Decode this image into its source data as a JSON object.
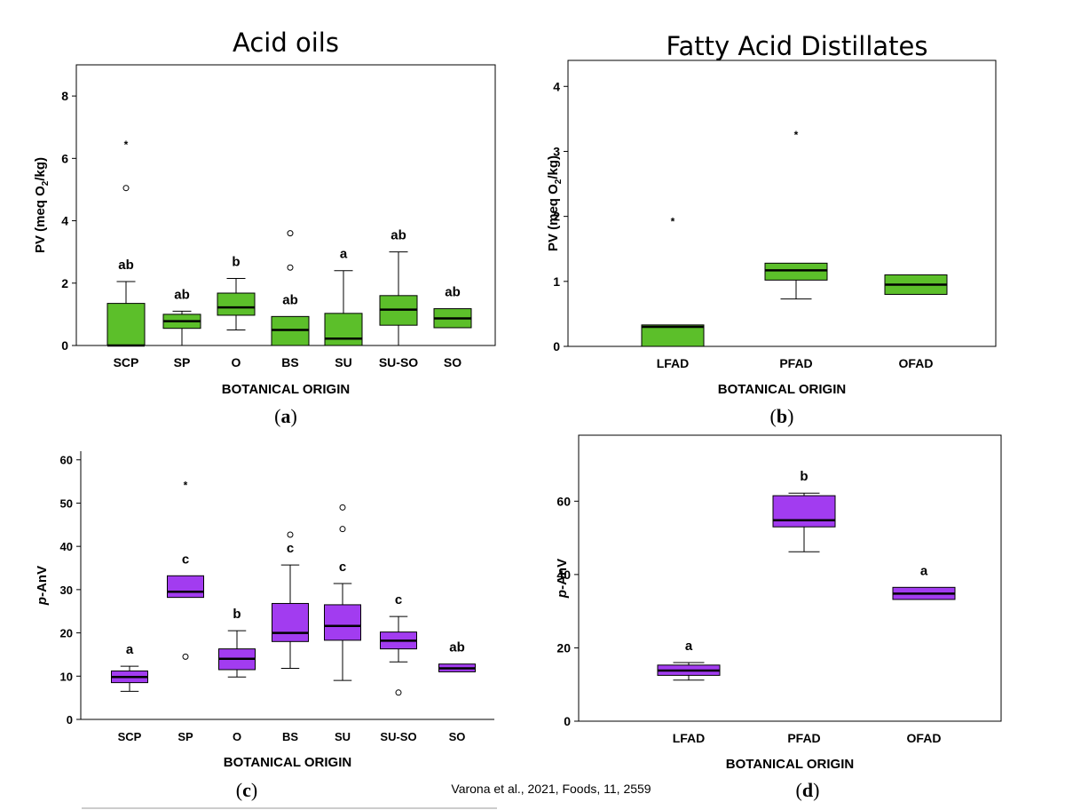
{
  "citation": "Varona et al., 2021, Foods, 11, 2559",
  "chart_data": [
    {
      "id": "a",
      "type": "box",
      "title": "Acid oils",
      "caption": "a",
      "xlabel": "BOTANICAL ORIGIN",
      "ylabel_parts": [
        "PV (meq O",
        "2",
        "/kg)"
      ],
      "ylim": [
        0,
        9
      ],
      "yticks": [
        0,
        2,
        4,
        6,
        8
      ],
      "fill": "#5cbf2a",
      "categories": [
        "SCP",
        "SP",
        "O",
        "BS",
        "SU",
        "SU-SO",
        "SO"
      ],
      "boxes": [
        {
          "min": 0.0,
          "q1": 0.0,
          "median": 0.0,
          "q3": 1.35,
          "max": 2.05,
          "outliers": [
            5.05
          ],
          "extremes": [
            6.5
          ],
          "letter": "ab"
        },
        {
          "min": 0.0,
          "q1": 0.55,
          "median": 0.78,
          "q3": 1.0,
          "max": 1.1,
          "outliers": [],
          "extremes": [],
          "letter": "ab"
        },
        {
          "min": 0.5,
          "q1": 0.97,
          "median": 1.22,
          "q3": 1.68,
          "max": 2.15,
          "outliers": [],
          "extremes": [],
          "letter": "b"
        },
        {
          "min": 0.0,
          "q1": 0.0,
          "median": 0.5,
          "q3": 0.93,
          "max": 0.93,
          "outliers": [
            2.5,
            3.6
          ],
          "extremes": [],
          "letter": "ab"
        },
        {
          "min": 0.0,
          "q1": 0.0,
          "median": 0.22,
          "q3": 1.03,
          "max": 2.4,
          "outliers": [],
          "extremes": [],
          "letter": "a"
        },
        {
          "min": 0.0,
          "q1": 0.65,
          "median": 1.15,
          "q3": 1.6,
          "max": 3.0,
          "outliers": [],
          "extremes": [],
          "letter": "ab"
        },
        {
          "min": 0.57,
          "q1": 0.57,
          "median": 0.87,
          "q3": 1.18,
          "max": 1.18,
          "outliers": [],
          "extremes": [],
          "letter": "ab"
        }
      ]
    },
    {
      "id": "b",
      "type": "box",
      "title": "Fatty Acid Distillates",
      "caption": "b",
      "xlabel": "BOTANICAL ORIGIN",
      "ylabel_parts": [
        "PV (meq O",
        "2",
        "/kg)"
      ],
      "ylim": [
        0,
        4.4
      ],
      "yticks": [
        0,
        1,
        2,
        3,
        4
      ],
      "fill": "#5cbf2a",
      "categories": [
        "LFAD",
        "PFAD",
        "OFAD"
      ],
      "boxes": [
        {
          "min": 0.0,
          "q1": 0.0,
          "median": 0.3,
          "q3": 0.33,
          "max": 0.33,
          "outliers": [],
          "extremes": [
            1.95
          ],
          "letter": ""
        },
        {
          "min": 0.73,
          "q1": 1.02,
          "median": 1.17,
          "q3": 1.28,
          "max": 1.28,
          "outliers": [],
          "extremes": [
            3.28
          ],
          "letter": ""
        },
        {
          "min": 0.8,
          "q1": 0.8,
          "median": 0.95,
          "q3": 1.1,
          "max": 1.1,
          "outliers": [],
          "extremes": [],
          "letter": ""
        }
      ]
    },
    {
      "id": "c",
      "type": "box",
      "title": "",
      "caption": "c",
      "xlabel": "BOTANICAL ORIGIN",
      "ylabel_parts": [
        "p",
        "-AnV"
      ],
      "ylim": [
        0,
        62
      ],
      "yticks": [
        0,
        10,
        20,
        30,
        40,
        50,
        60
      ],
      "fill": "#a23cf0",
      "categories": [
        "SCP",
        "SP",
        "O",
        "BS",
        "SU",
        "SU-SO",
        "SO"
      ],
      "boxes": [
        {
          "min": 6.5,
          "q1": 8.5,
          "median": 9.8,
          "q3": 11.2,
          "max": 12.3,
          "outliers": [],
          "extremes": [],
          "letter": "a"
        },
        {
          "min": 28.2,
          "q1": 28.2,
          "median": 29.5,
          "q3": 33.2,
          "max": 33.2,
          "outliers": [
            14.5
          ],
          "extremes": [
            54.5
          ],
          "letter": "c"
        },
        {
          "min": 9.8,
          "q1": 11.5,
          "median": 14.0,
          "q3": 16.3,
          "max": 20.5,
          "outliers": [],
          "extremes": [],
          "letter": "b"
        },
        {
          "min": 11.8,
          "q1": 18.0,
          "median": 20.0,
          "q3": 26.8,
          "max": 35.7,
          "outliers": [
            42.7
          ],
          "extremes": [],
          "letter": "c"
        },
        {
          "min": 9.0,
          "q1": 18.3,
          "median": 21.6,
          "q3": 26.5,
          "max": 31.4,
          "outliers": [
            44.0,
            49.0
          ],
          "extremes": [],
          "letter": "c"
        },
        {
          "min": 13.3,
          "q1": 16.3,
          "median": 18.2,
          "q3": 20.2,
          "max": 23.8,
          "outliers": [
            6.2
          ],
          "extremes": [],
          "letter": "c"
        },
        {
          "min": 11.0,
          "q1": 11.0,
          "median": 11.8,
          "q3": 12.8,
          "max": 12.8,
          "outliers": [],
          "extremes": [],
          "letter": "ab"
        }
      ]
    },
    {
      "id": "d",
      "type": "box",
      "title": "",
      "caption": "d",
      "xlabel": "BOTANICAL ORIGIN",
      "ylabel_parts": [
        "p",
        "-AnV"
      ],
      "ylim": [
        0,
        78
      ],
      "yticks": [
        0,
        20,
        40,
        60
      ],
      "fill": "#a23cf0",
      "categories": [
        "LFAD",
        "PFAD",
        "OFAD"
      ],
      "boxes": [
        {
          "min": 11.2,
          "q1": 12.5,
          "median": 13.8,
          "q3": 15.3,
          "max": 16.0,
          "outliers": [],
          "extremes": [],
          "letter": "a"
        },
        {
          "min": 46.2,
          "q1": 53.0,
          "median": 54.8,
          "q3": 61.5,
          "max": 62.2,
          "outliers": [],
          "extremes": [],
          "letter": "b"
        },
        {
          "min": 33.2,
          "q1": 33.2,
          "median": 34.8,
          "q3": 36.5,
          "max": 36.5,
          "outliers": [],
          "extremes": [],
          "letter": "a"
        }
      ]
    }
  ]
}
